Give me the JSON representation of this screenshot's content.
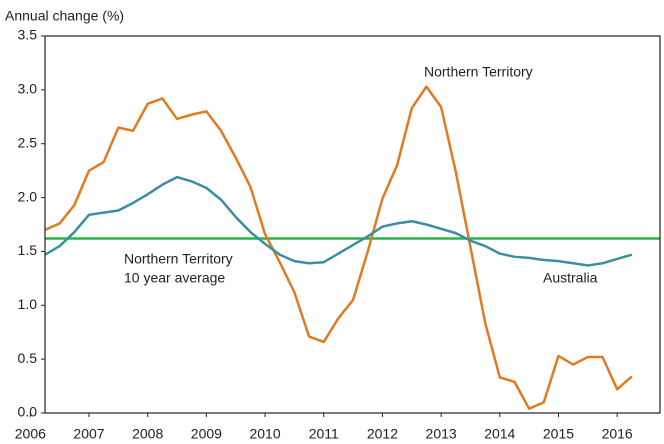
{
  "chart_data": {
    "type": "line",
    "ylabel": "Annual change (%)",
    "x": [
      2006.25,
      2006.5,
      2006.75,
      2007,
      2007.25,
      2007.5,
      2007.75,
      2008,
      2008.25,
      2008.5,
      2008.75,
      2009,
      2009.25,
      2009.5,
      2009.75,
      2010,
      2010.25,
      2010.5,
      2010.75,
      2011,
      2011.25,
      2011.5,
      2011.75,
      2012,
      2012.25,
      2012.5,
      2012.75,
      2013,
      2013.25,
      2013.5,
      2013.75,
      2014,
      2014.25,
      2014.5,
      2014.75,
      2015,
      2015.25,
      2015.5,
      2015.75,
      2016,
      2016.25
    ],
    "series": [
      {
        "name": "Northern Territory",
        "color": "#e07b20",
        "values": [
          1.7,
          1.76,
          1.93,
          2.25,
          2.33,
          2.65,
          2.62,
          2.87,
          2.92,
          2.73,
          2.77,
          2.8,
          2.62,
          2.37,
          2.1,
          1.66,
          1.4,
          1.12,
          0.71,
          0.66,
          0.88,
          1.05,
          1.5,
          1.99,
          2.3,
          2.83,
          3.03,
          2.84,
          2.24,
          1.54,
          0.84,
          0.33,
          0.29,
          0.04,
          0.1,
          0.53,
          0.45,
          0.52,
          0.52,
          0.22,
          0.34
        ]
      },
      {
        "name": "Australia",
        "color": "#3a8fa0",
        "values": [
          1.47,
          1.55,
          1.68,
          1.84,
          1.86,
          1.88,
          1.95,
          2.03,
          2.12,
          2.19,
          2.15,
          2.09,
          1.98,
          1.82,
          1.68,
          1.57,
          1.47,
          1.41,
          1.39,
          1.4,
          1.48,
          1.56,
          1.64,
          1.73,
          1.76,
          1.78,
          1.75,
          1.71,
          1.67,
          1.6,
          1.55,
          1.48,
          1.45,
          1.44,
          1.42,
          1.41,
          1.39,
          1.37,
          1.39,
          1.43,
          1.47
        ]
      }
    ],
    "reference_line": {
      "value": 1.62,
      "color": "#2bb44a",
      "label": [
        "Northern Territory",
        "10 year average"
      ]
    },
    "xlim": [
      2006.25,
      2016.73
    ],
    "xticks": [
      2006,
      2007,
      2008,
      2009,
      2010,
      2011,
      2012,
      2013,
      2014,
      2015,
      2016
    ],
    "ylim": [
      0,
      3.5
    ],
    "yticks": [
      {
        "value": 0,
        "label": "0.0"
      },
      0.5,
      {
        "value": 1,
        "label": "1.0"
      },
      1.5,
      {
        "value": 2,
        "label": "2.0"
      },
      2.5,
      {
        "value": 3,
        "label": "3.0"
      },
      3.5
    ],
    "grid": false
  }
}
